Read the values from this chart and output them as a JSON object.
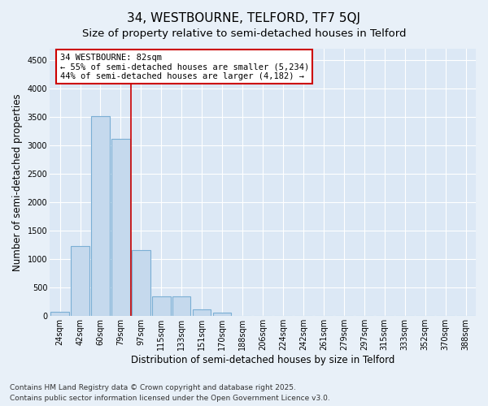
{
  "title": "34, WESTBOURNE, TELFORD, TF7 5QJ",
  "subtitle": "Size of property relative to semi-detached houses in Telford",
  "xlabel": "Distribution of semi-detached houses by size in Telford",
  "ylabel": "Number of semi-detached properties",
  "categories": [
    "24sqm",
    "42sqm",
    "60sqm",
    "79sqm",
    "97sqm",
    "115sqm",
    "133sqm",
    "151sqm",
    "170sqm",
    "188sqm",
    "206sqm",
    "224sqm",
    "242sqm",
    "261sqm",
    "279sqm",
    "297sqm",
    "315sqm",
    "333sqm",
    "352sqm",
    "370sqm",
    "388sqm"
  ],
  "values": [
    80,
    1230,
    3520,
    3110,
    1160,
    340,
    340,
    115,
    55,
    0,
    0,
    0,
    0,
    0,
    0,
    0,
    0,
    0,
    0,
    0,
    0
  ],
  "bar_color": "#c5d9ed",
  "bar_edge_color": "#7bafd4",
  "annotation_line1": "34 WESTBOURNE: 82sqm",
  "annotation_line2": "← 55% of semi-detached houses are smaller (5,234)",
  "annotation_line3": "44% of semi-detached houses are larger (4,182) →",
  "vline_color": "#cc0000",
  "vline_x": 3.5,
  "annotation_box_facecolor": "white",
  "annotation_box_edgecolor": "#cc0000",
  "ylim": [
    0,
    4700
  ],
  "yticks": [
    0,
    500,
    1000,
    1500,
    2000,
    2500,
    3000,
    3500,
    4000,
    4500
  ],
  "footer": "Contains HM Land Registry data © Crown copyright and database right 2025.\nContains public sector information licensed under the Open Government Licence v3.0.",
  "fig_bg_color": "#e8f0f8",
  "plot_bg_color": "#dce8f5",
  "title_fontsize": 11,
  "subtitle_fontsize": 9.5,
  "tick_fontsize": 7,
  "label_fontsize": 8.5,
  "ann_fontsize": 7.5,
  "footer_fontsize": 6.5,
  "grid_color": "white",
  "figsize": [
    6.0,
    5.0
  ],
  "dpi": 100
}
